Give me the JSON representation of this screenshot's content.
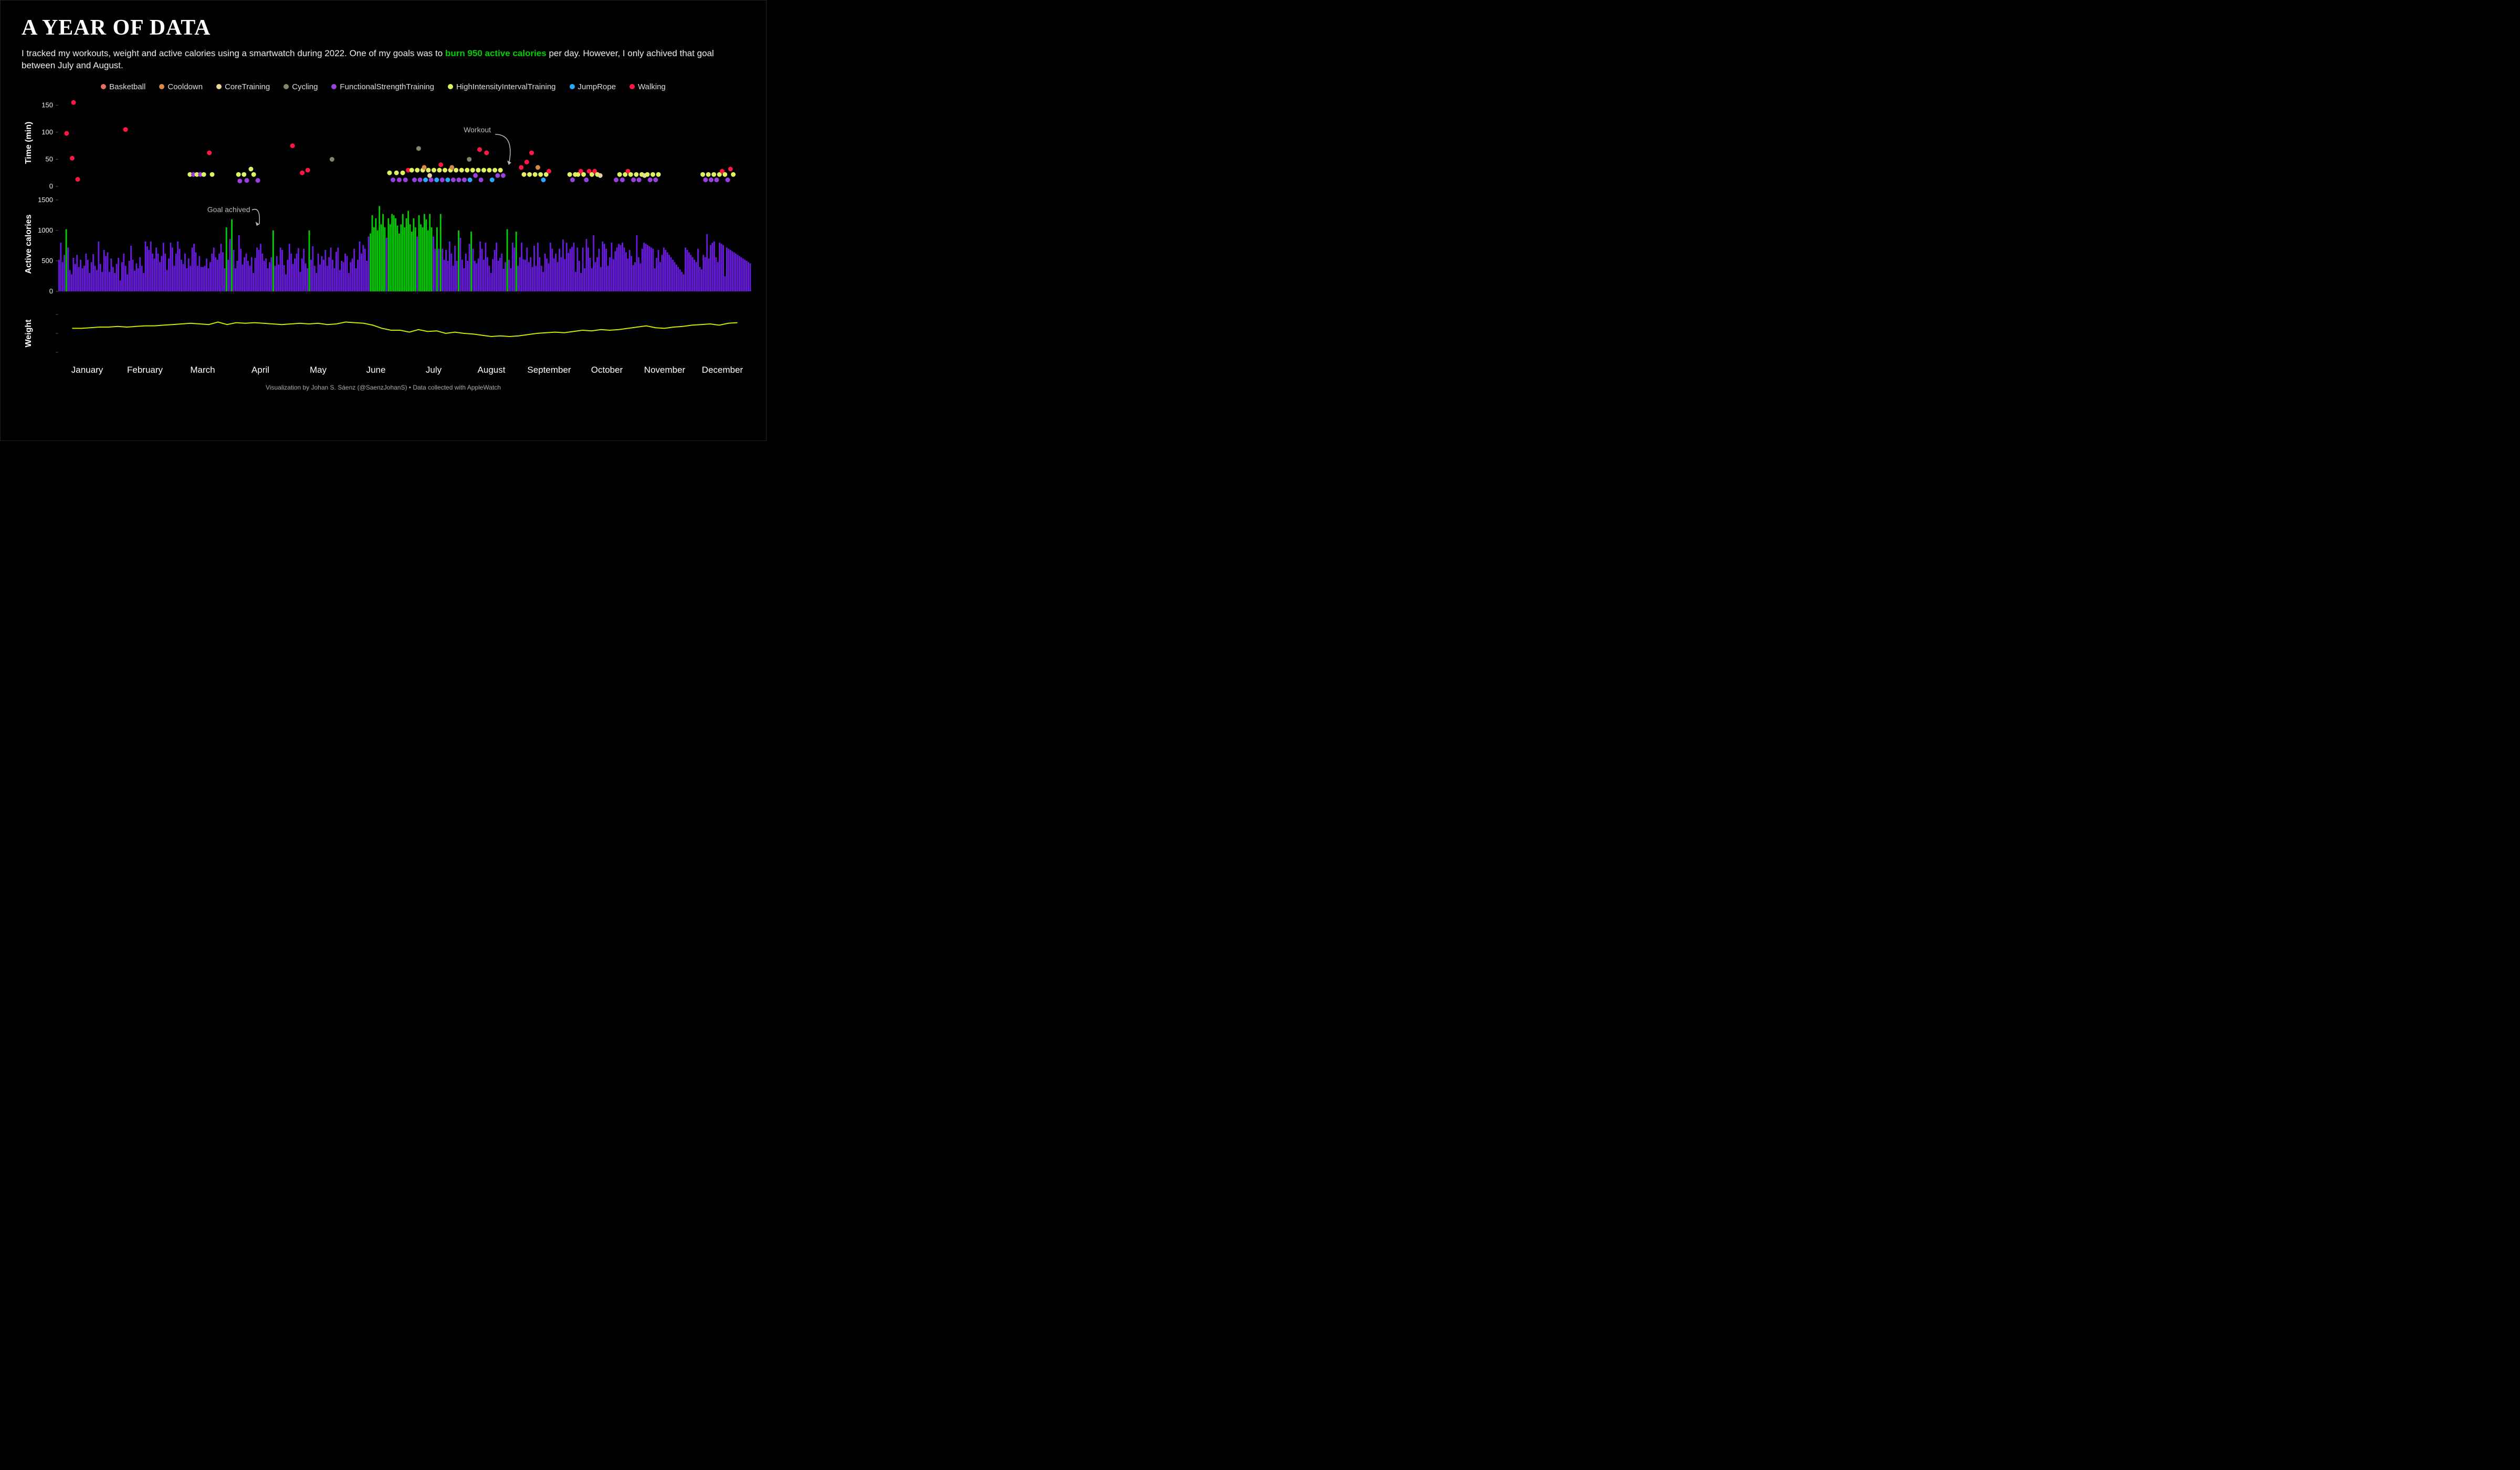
{
  "title": "A YEAR OF DATA",
  "subtitle_pre": "I tracked my workouts, weight and active calories using a smartwatch during 2022. One of my goals was to ",
  "subtitle_hl": "burn 950 active calories",
  "subtitle_post": " per day. However, I only achived that goal between July and August.",
  "credit": "Visualization by Johan S. Sáenz (@SaenzJohanS) • Data collected with AppleWatch",
  "colors": {
    "bg": "#000000",
    "text": "#ffffff",
    "cal_below": "#6a1be0",
    "cal_goal": "#00d000",
    "weight_line": "#d4e600",
    "grid": "#555555"
  },
  "legend": [
    {
      "label": "Basketball",
      "color": "#e2725b"
    },
    {
      "label": "Cooldown",
      "color": "#d88a4a"
    },
    {
      "label": "CoreTraining",
      "color": "#e6d69a"
    },
    {
      "label": "Cycling",
      "color": "#7a8a6a"
    },
    {
      "label": "FunctionalStrengthTraining",
      "color": "#9a3fe0"
    },
    {
      "label": "HighIntensityIntervalTraining",
      "color": "#e0f060"
    },
    {
      "label": "JumpRope",
      "color": "#2aa8ff"
    },
    {
      "label": "Walking",
      "color": "#ff1744"
    }
  ],
  "months": [
    "January",
    "February",
    "March",
    "April",
    "May",
    "June",
    "July",
    "August",
    "September",
    "October",
    "November",
    "December"
  ],
  "panel1": {
    "ylabel": "Time (min)",
    "height": 165,
    "ylim": [
      0,
      160
    ],
    "yticks": [
      0,
      50,
      100,
      150
    ],
    "annotation": {
      "text": "Workout",
      "x": 0.585,
      "y_val": 100,
      "arrow_to_x": 0.65,
      "arrow_to_y": 40
    },
    "points": [
      {
        "x": 0.012,
        "y": 98,
        "c": "#ff1744"
      },
      {
        "x": 0.02,
        "y": 52,
        "c": "#ff1744"
      },
      {
        "x": 0.022,
        "y": 155,
        "c": "#ff1744"
      },
      {
        "x": 0.028,
        "y": 13,
        "c": "#ff1744"
      },
      {
        "x": 0.097,
        "y": 105,
        "c": "#ff1744"
      },
      {
        "x": 0.19,
        "y": 22,
        "c": "#e0f060"
      },
      {
        "x": 0.195,
        "y": 22,
        "c": "#9a3fe0"
      },
      {
        "x": 0.2,
        "y": 22,
        "c": "#e0f060"
      },
      {
        "x": 0.205,
        "y": 22,
        "c": "#9a3fe0"
      },
      {
        "x": 0.21,
        "y": 22,
        "c": "#e0f060"
      },
      {
        "x": 0.218,
        "y": 62,
        "c": "#ff1744"
      },
      {
        "x": 0.222,
        "y": 22,
        "c": "#e0f060"
      },
      {
        "x": 0.26,
        "y": 22,
        "c": "#e0f060"
      },
      {
        "x": 0.262,
        "y": 10,
        "c": "#9a3fe0"
      },
      {
        "x": 0.268,
        "y": 22,
        "c": "#e0f060"
      },
      {
        "x": 0.272,
        "y": 11,
        "c": "#9a3fe0"
      },
      {
        "x": 0.278,
        "y": 32,
        "c": "#e0f060"
      },
      {
        "x": 0.282,
        "y": 22,
        "c": "#e0f060"
      },
      {
        "x": 0.288,
        "y": 11,
        "c": "#9a3fe0"
      },
      {
        "x": 0.338,
        "y": 75,
        "c": "#ff1744"
      },
      {
        "x": 0.352,
        "y": 25,
        "c": "#ff1744"
      },
      {
        "x": 0.36,
        "y": 30,
        "c": "#ff1744"
      },
      {
        "x": 0.395,
        "y": 50,
        "c": "#7a8a6a"
      },
      {
        "x": 0.478,
        "y": 25,
        "c": "#e0f060"
      },
      {
        "x": 0.483,
        "y": 12,
        "c": "#9a3fe0"
      },
      {
        "x": 0.488,
        "y": 25,
        "c": "#e0f060"
      },
      {
        "x": 0.492,
        "y": 12,
        "c": "#9a3fe0"
      },
      {
        "x": 0.497,
        "y": 25,
        "c": "#e0f060"
      },
      {
        "x": 0.501,
        "y": 12,
        "c": "#9a3fe0"
      },
      {
        "x": 0.505,
        "y": 30,
        "c": "#ff1744"
      },
      {
        "x": 0.51,
        "y": 30,
        "c": "#e0f060"
      },
      {
        "x": 0.514,
        "y": 12,
        "c": "#9a3fe0"
      },
      {
        "x": 0.518,
        "y": 30,
        "c": "#e0f060"
      },
      {
        "x": 0.52,
        "y": 70,
        "c": "#7a8a6a"
      },
      {
        "x": 0.522,
        "y": 12,
        "c": "#9a3fe0"
      },
      {
        "x": 0.526,
        "y": 30,
        "c": "#e0f060"
      },
      {
        "x": 0.528,
        "y": 35,
        "c": "#d88a4a"
      },
      {
        "x": 0.53,
        "y": 12,
        "c": "#2aa8ff"
      },
      {
        "x": 0.534,
        "y": 30,
        "c": "#e0f060"
      },
      {
        "x": 0.536,
        "y": 20,
        "c": "#e6d69a"
      },
      {
        "x": 0.538,
        "y": 12,
        "c": "#9a3fe0"
      },
      {
        "x": 0.542,
        "y": 30,
        "c": "#e0f060"
      },
      {
        "x": 0.546,
        "y": 12,
        "c": "#2aa8ff"
      },
      {
        "x": 0.55,
        "y": 30,
        "c": "#e0f060"
      },
      {
        "x": 0.552,
        "y": 40,
        "c": "#ff1744"
      },
      {
        "x": 0.554,
        "y": 12,
        "c": "#9a3fe0"
      },
      {
        "x": 0.558,
        "y": 30,
        "c": "#e0f060"
      },
      {
        "x": 0.562,
        "y": 12,
        "c": "#2aa8ff"
      },
      {
        "x": 0.566,
        "y": 30,
        "c": "#e0f060"
      },
      {
        "x": 0.568,
        "y": 35,
        "c": "#d88a4a"
      },
      {
        "x": 0.57,
        "y": 12,
        "c": "#9a3fe0"
      },
      {
        "x": 0.574,
        "y": 30,
        "c": "#e0f060"
      },
      {
        "x": 0.578,
        "y": 12,
        "c": "#9a3fe0"
      },
      {
        "x": 0.582,
        "y": 30,
        "c": "#e0f060"
      },
      {
        "x": 0.586,
        "y": 12,
        "c": "#9a3fe0"
      },
      {
        "x": 0.59,
        "y": 30,
        "c": "#e0f060"
      },
      {
        "x": 0.593,
        "y": 50,
        "c": "#7a8a6a"
      },
      {
        "x": 0.594,
        "y": 12,
        "c": "#2aa8ff"
      },
      {
        "x": 0.598,
        "y": 30,
        "c": "#e0f060"
      },
      {
        "x": 0.602,
        "y": 20,
        "c": "#9a3fe0"
      },
      {
        "x": 0.606,
        "y": 30,
        "c": "#e0f060"
      },
      {
        "x": 0.608,
        "y": 68,
        "c": "#ff1744"
      },
      {
        "x": 0.61,
        "y": 12,
        "c": "#9a3fe0"
      },
      {
        "x": 0.614,
        "y": 30,
        "c": "#e0f060"
      },
      {
        "x": 0.618,
        "y": 62,
        "c": "#ff1744"
      },
      {
        "x": 0.622,
        "y": 30,
        "c": "#e0f060"
      },
      {
        "x": 0.626,
        "y": 12,
        "c": "#2aa8ff"
      },
      {
        "x": 0.63,
        "y": 30,
        "c": "#e0f060"
      },
      {
        "x": 0.634,
        "y": 20,
        "c": "#9a3fe0"
      },
      {
        "x": 0.638,
        "y": 30,
        "c": "#e0f060"
      },
      {
        "x": 0.642,
        "y": 20,
        "c": "#9a3fe0"
      },
      {
        "x": 0.668,
        "y": 35,
        "c": "#ff1744"
      },
      {
        "x": 0.672,
        "y": 22,
        "c": "#e0f060"
      },
      {
        "x": 0.676,
        "y": 45,
        "c": "#ff1744"
      },
      {
        "x": 0.68,
        "y": 22,
        "c": "#e0f060"
      },
      {
        "x": 0.683,
        "y": 62,
        "c": "#ff1744"
      },
      {
        "x": 0.688,
        "y": 22,
        "c": "#e0f060"
      },
      {
        "x": 0.692,
        "y": 35,
        "c": "#d88a4a"
      },
      {
        "x": 0.696,
        "y": 22,
        "c": "#e0f060"
      },
      {
        "x": 0.7,
        "y": 12,
        "c": "#2aa8ff"
      },
      {
        "x": 0.704,
        "y": 22,
        "c": "#e0f060"
      },
      {
        "x": 0.708,
        "y": 28,
        "c": "#ff1744"
      },
      {
        "x": 0.738,
        "y": 22,
        "c": "#e0f060"
      },
      {
        "x": 0.742,
        "y": 12,
        "c": "#9a3fe0"
      },
      {
        "x": 0.746,
        "y": 22,
        "c": "#e0f060"
      },
      {
        "x": 0.75,
        "y": 22,
        "c": "#e0f060"
      },
      {
        "x": 0.754,
        "y": 28,
        "c": "#ff1744"
      },
      {
        "x": 0.758,
        "y": 22,
        "c": "#e0f060"
      },
      {
        "x": 0.762,
        "y": 12,
        "c": "#9a3fe0"
      },
      {
        "x": 0.766,
        "y": 28,
        "c": "#ff1744"
      },
      {
        "x": 0.77,
        "y": 22,
        "c": "#e0f060"
      },
      {
        "x": 0.774,
        "y": 28,
        "c": "#ff1744"
      },
      {
        "x": 0.778,
        "y": 22,
        "c": "#e0f060"
      },
      {
        "x": 0.782,
        "y": 20,
        "c": "#e6d69a"
      },
      {
        "x": 0.805,
        "y": 12,
        "c": "#9a3fe0"
      },
      {
        "x": 0.81,
        "y": 22,
        "c": "#e0f060"
      },
      {
        "x": 0.814,
        "y": 12,
        "c": "#9a3fe0"
      },
      {
        "x": 0.818,
        "y": 22,
        "c": "#e0f060"
      },
      {
        "x": 0.822,
        "y": 28,
        "c": "#ff1744"
      },
      {
        "x": 0.826,
        "y": 22,
        "c": "#e0f060"
      },
      {
        "x": 0.83,
        "y": 12,
        "c": "#9a3fe0"
      },
      {
        "x": 0.834,
        "y": 22,
        "c": "#e0f060"
      },
      {
        "x": 0.838,
        "y": 12,
        "c": "#9a3fe0"
      },
      {
        "x": 0.842,
        "y": 22,
        "c": "#e0f060"
      },
      {
        "x": 0.846,
        "y": 20,
        "c": "#e6d69a"
      },
      {
        "x": 0.85,
        "y": 22,
        "c": "#e0f060"
      },
      {
        "x": 0.854,
        "y": 12,
        "c": "#9a3fe0"
      },
      {
        "x": 0.858,
        "y": 22,
        "c": "#e0f060"
      },
      {
        "x": 0.862,
        "y": 12,
        "c": "#9a3fe0"
      },
      {
        "x": 0.866,
        "y": 22,
        "c": "#e0f060"
      },
      {
        "x": 0.93,
        "y": 22,
        "c": "#e0f060"
      },
      {
        "x": 0.934,
        "y": 12,
        "c": "#9a3fe0"
      },
      {
        "x": 0.938,
        "y": 22,
        "c": "#e0f060"
      },
      {
        "x": 0.942,
        "y": 12,
        "c": "#9a3fe0"
      },
      {
        "x": 0.946,
        "y": 22,
        "c": "#e0f060"
      },
      {
        "x": 0.95,
        "y": 12,
        "c": "#9a3fe0"
      },
      {
        "x": 0.954,
        "y": 22,
        "c": "#e0f060"
      },
      {
        "x": 0.958,
        "y": 28,
        "c": "#ff1744"
      },
      {
        "x": 0.962,
        "y": 22,
        "c": "#e0f060"
      },
      {
        "x": 0.966,
        "y": 12,
        "c": "#9a3fe0"
      },
      {
        "x": 0.97,
        "y": 32,
        "c": "#ff1744"
      },
      {
        "x": 0.974,
        "y": 22,
        "c": "#e0f060"
      }
    ]
  },
  "panel2": {
    "ylabel": "Active calories",
    "height": 180,
    "ylim": [
      0,
      1550
    ],
    "yticks": [
      0,
      500,
      1000,
      1500
    ],
    "goal_threshold": 950,
    "annotation": {
      "text": "Goal achived",
      "x": 0.215,
      "y_val": 1300,
      "arrow_to_x": 0.29,
      "arrow_to_y": 1100
    },
    "values": [
      520,
      800,
      480,
      600,
      1020,
      720,
      350,
      280,
      550,
      450,
      600,
      400,
      520,
      380,
      420,
      620,
      520,
      300,
      480,
      610,
      420,
      350,
      820,
      450,
      320,
      680,
      580,
      640,
      320,
      540,
      400,
      300,
      450,
      550,
      180,
      480,
      620,
      420,
      280,
      500,
      750,
      520,
      340,
      460,
      380,
      560,
      420,
      300,
      820,
      740,
      680,
      820,
      620,
      540,
      720,
      620,
      480,
      580,
      800,
      620,
      350,
      540,
      800,
      720,
      420,
      620,
      820,
      700,
      520,
      450,
      620,
      380,
      540,
      420,
      720,
      780,
      640,
      420,
      580,
      400,
      400,
      420,
      540,
      380,
      480,
      620,
      720,
      560,
      520,
      620,
      780,
      640,
      380,
      1050,
      520,
      860,
      1180,
      680,
      380,
      500,
      920,
      700,
      440,
      560,
      620,
      500,
      420,
      560,
      300,
      550,
      720,
      680,
      780,
      620,
      500,
      540,
      380,
      480,
      560,
      1000,
      420,
      580,
      440,
      720,
      680,
      430,
      280,
      520,
      780,
      620,
      450,
      540,
      620,
      710,
      320,
      540,
      700,
      460,
      380,
      1000,
      520,
      740,
      420,
      300,
      620,
      440,
      580,
      520,
      680,
      420,
      560,
      720,
      520,
      380,
      650,
      720,
      350,
      500,
      480,
      620,
      580,
      300,
      480,
      540,
      700,
      380,
      520,
      820,
      620,
      760,
      700,
      500,
      900,
      950,
      1250,
      1050,
      1200,
      1000,
      1400,
      1100,
      1270,
      1050,
      880,
      1200,
      1100,
      1270,
      1250,
      1200,
      1080,
      950,
      1100,
      1270,
      1050,
      1200,
      1320,
      1100,
      980,
      1200,
      1050,
      900,
      1250,
      1100,
      1050,
      1270,
      1180,
      1000,
      1270,
      1050,
      900,
      700,
      1050,
      700,
      1270,
      700,
      520,
      680,
      500,
      820,
      620,
      420,
      750,
      500,
      1000,
      880,
      520,
      380,
      620,
      500,
      780,
      980,
      700,
      500,
      460,
      540,
      820,
      700,
      520,
      800,
      560,
      420,
      300,
      530,
      680,
      800,
      500,
      550,
      620,
      370,
      480,
      1020,
      520,
      380,
      800,
      720,
      980,
      420,
      560,
      800,
      530,
      520,
      720,
      480,
      560,
      400,
      750,
      420,
      800,
      560,
      420,
      320,
      620,
      540,
      460,
      800,
      700,
      540,
      620,
      480,
      700,
      560,
      850,
      530,
      800,
      630,
      700,
      730,
      800,
      320,
      720,
      500,
      300,
      720,
      380,
      860,
      720,
      550,
      380,
      920,
      480,
      560,
      700,
      400,
      820,
      780,
      700,
      420,
      560,
      800,
      530,
      660,
      720,
      780,
      760,
      800,
      720,
      640,
      540,
      680,
      580,
      430,
      480,
      920,
      560,
      460,
      700,
      800,
      780,
      760,
      740,
      720,
      700,
      380,
      550,
      680,
      480,
      600,
      720,
      680,
      640,
      600,
      560,
      520,
      480,
      440,
      400,
      360,
      320,
      280,
      720,
      680,
      640,
      600,
      560,
      520,
      480,
      700,
      400,
      360,
      600,
      560,
      940,
      540,
      760,
      800,
      820,
      560,
      480,
      800,
      780,
      760,
      250,
      720,
      700,
      680,
      660,
      640,
      620,
      600,
      580,
      560,
      540,
      520,
      500,
      480,
      460
    ]
  },
  "panel3": {
    "ylabel": "Weight",
    "height": 120,
    "ylim": [
      0,
      100
    ],
    "values": [
      58,
      58,
      59,
      60,
      60,
      61,
      60,
      61,
      62,
      62,
      63,
      64,
      65,
      66,
      65,
      64,
      68,
      64,
      67,
      66,
      67,
      66,
      65,
      64,
      65,
      66,
      65,
      66,
      64,
      65,
      68,
      67,
      66,
      63,
      58,
      55,
      55,
      52,
      56,
      53,
      54,
      50,
      52,
      50,
      49,
      47,
      45,
      46,
      45,
      46,
      48,
      50,
      51,
      52,
      51,
      53,
      55,
      54,
      56,
      55,
      56,
      58,
      60,
      62,
      59,
      58,
      60,
      61,
      63,
      64,
      65,
      63,
      66,
      67
    ]
  }
}
